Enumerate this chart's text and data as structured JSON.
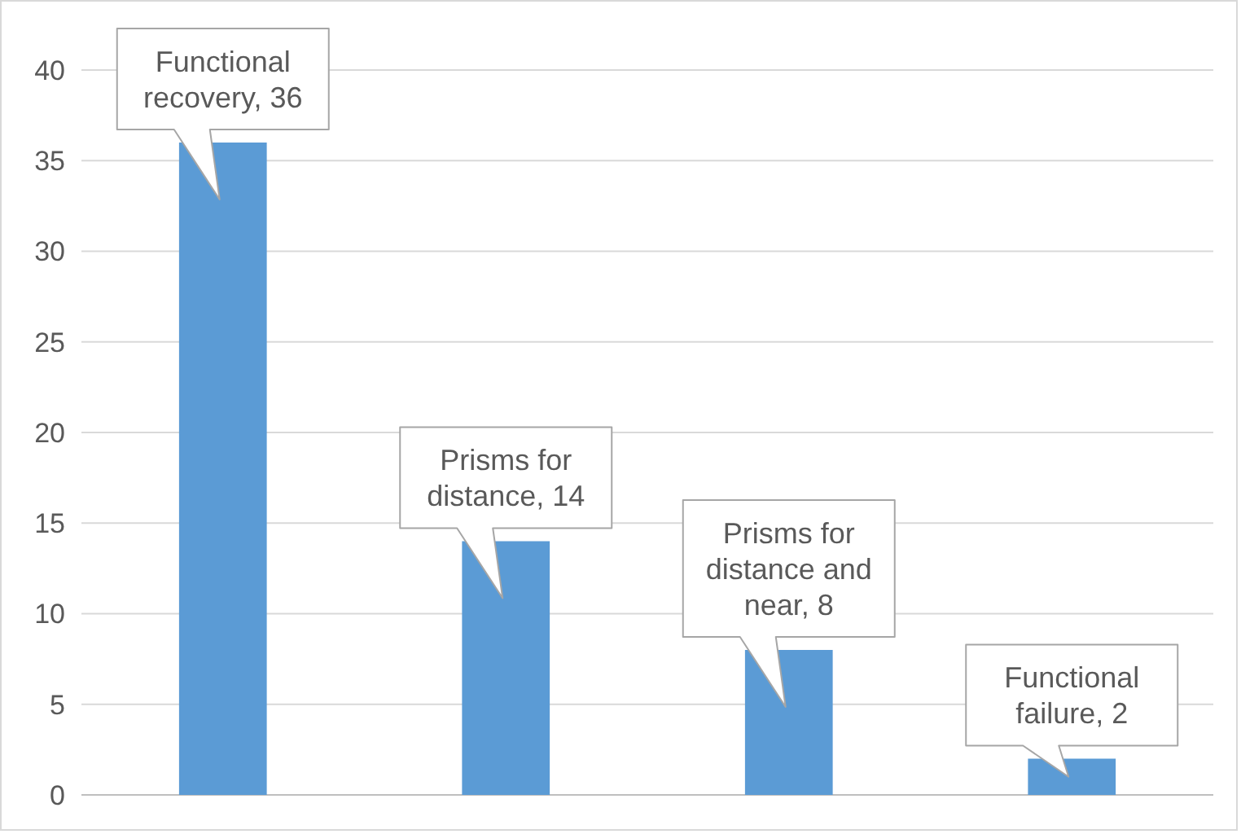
{
  "chart_data": {
    "type": "bar",
    "categories": [
      null,
      null,
      null,
      null
    ],
    "values": [
      36,
      14,
      8,
      2
    ],
    "color": "#5b9bd5",
    "ylim": [
      0,
      40
    ],
    "yticks": [
      0,
      5,
      10,
      15,
      20,
      25,
      30,
      35,
      40
    ],
    "grid": "y",
    "tick_labels": "y",
    "value_labels": [
      "Functional recovery, 36",
      "Prisms for distance, 14",
      "Prisms for distance and near, 8",
      "Functional failure, 2"
    ]
  }
}
